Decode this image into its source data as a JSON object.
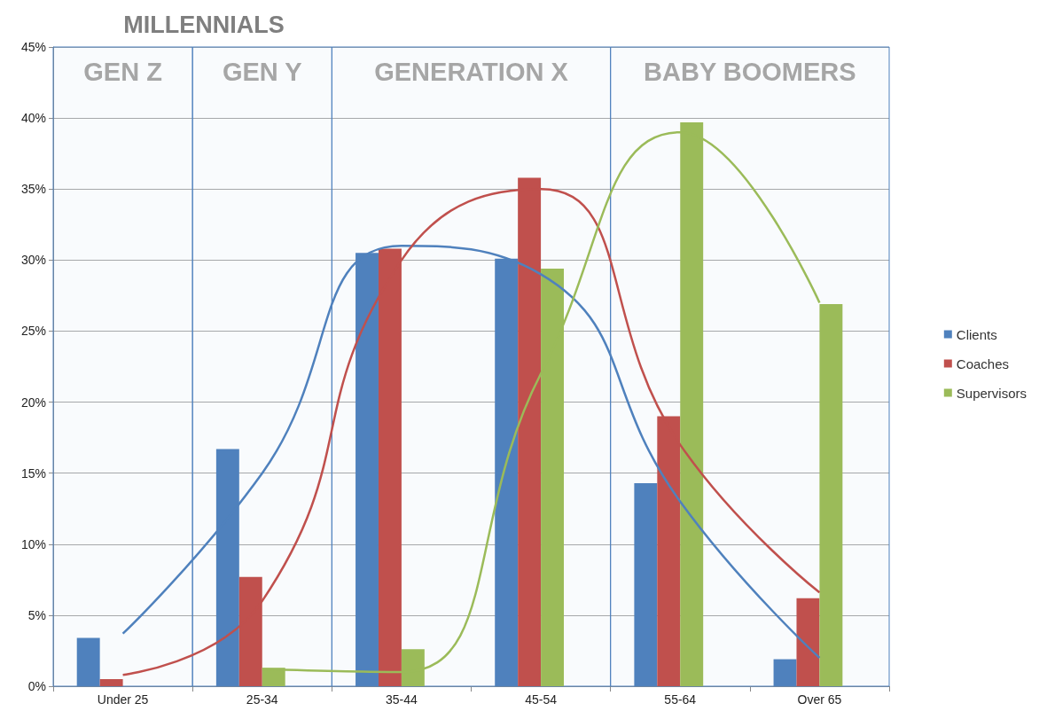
{
  "chart_data": {
    "type": "bar",
    "categories": [
      "Under 25",
      "25-34",
      "35-44",
      "45-54",
      "55-64",
      "Over 65"
    ],
    "series": [
      {
        "name": "Clients",
        "color": "#4f81bd",
        "values": [
          3.4,
          16.7,
          30.5,
          30.1,
          14.3,
          1.9
        ]
      },
      {
        "name": "Coaches",
        "color": "#c0504d",
        "values": [
          0.5,
          7.7,
          30.8,
          35.8,
          19.0,
          6.2
        ]
      },
      {
        "name": "Supervisors",
        "color": "#9bbb59",
        "values": [
          0,
          1.3,
          2.6,
          29.4,
          39.7,
          26.9
        ]
      },
      {
        "type": "line",
        "color": "#4f81bd",
        "values": [
          3.7,
          15,
          31,
          29,
          13,
          2
        ]
      },
      {
        "type": "line",
        "color": "#c0504d",
        "values": [
          0.8,
          6,
          30,
          35,
          17,
          6.6
        ]
      },
      {
        "type": "line",
        "color": "#9bbb59",
        "values": [
          null,
          1.2,
          1,
          22,
          39,
          27
        ]
      }
    ],
    "ylim": [
      0,
      45
    ],
    "yticks": [
      {
        "value": 0,
        "label": "0%"
      },
      {
        "value": 5,
        "label": "5%"
      },
      {
        "value": 10,
        "label": "10%"
      },
      {
        "value": 15,
        "label": "15%"
      },
      {
        "value": 20,
        "label": "20%"
      },
      {
        "value": 25,
        "label": "25%"
      },
      {
        "value": 30,
        "label": "30%"
      },
      {
        "value": 35,
        "label": "35%"
      },
      {
        "value": 40,
        "label": "40%"
      },
      {
        "value": 45,
        "label": "45%"
      }
    ],
    "bands": [
      {
        "axis": "x",
        "from": "Under 25",
        "to": "Under 25",
        "label": "GEN Z",
        "color": "#4f81bd"
      },
      {
        "axis": "x",
        "from": "25-34",
        "to": "25-34",
        "label": "GEN Y",
        "color": "#4f81bd"
      },
      {
        "axis": "x",
        "from": "35-44",
        "to": "45-54",
        "label": "GENERATION X",
        "color": "#4f81bd"
      },
      {
        "axis": "x",
        "from": "55-64",
        "to": "Over 65",
        "label": "BABY BOOMERS",
        "color": "#4f81bd"
      }
    ],
    "annotations": [
      "MILLENNIALS"
    ],
    "grid": "y",
    "legend": "right"
  }
}
